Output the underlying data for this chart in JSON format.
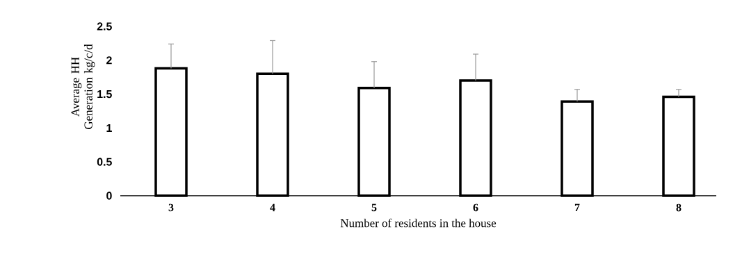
{
  "chart_data": {
    "type": "bar",
    "xlabel": "Number of residents in the house",
    "ylabel": "Average HH Generation kg/c/d",
    "categories": [
      "3",
      "4",
      "5",
      "6",
      "7",
      "8"
    ],
    "values": [
      1.88,
      1.8,
      1.59,
      1.7,
      1.39,
      1.46
    ],
    "errors": [
      [
        1.88,
        2.24
      ],
      [
        1.8,
        2.29
      ],
      [
        1.59,
        1.98
      ],
      [
        1.7,
        2.09
      ],
      [
        1.39,
        1.57
      ],
      [
        1.46,
        1.57
      ]
    ],
    "color": "#ffffff",
    "ylim": [
      0,
      2.5
    ],
    "yticks": [
      0,
      0.5,
      1,
      1.5,
      2,
      2.5
    ],
    "grid": false
  }
}
